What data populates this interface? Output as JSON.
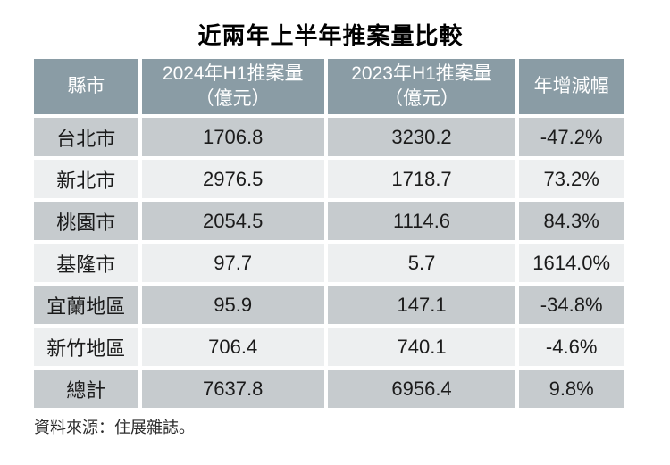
{
  "page": {
    "title": "近兩年上半年推案量比較",
    "source_note": "資料來源：住展雜誌。"
  },
  "colors": {
    "page_bg": "#ffffff",
    "header_bg": "#8a9ca5",
    "header_text": "#ffffff",
    "row_dark_bg": "#c6cbce",
    "row_light_bg": "#edeff0",
    "cell_text": "#1b1b1b",
    "title_text": "#000000",
    "source_text": "#2b2b2b"
  },
  "table": {
    "headers": [
      {
        "line1": "縣市",
        "line2": ""
      },
      {
        "line1": "2024年H1推案量",
        "line2": "（億元）"
      },
      {
        "line1": "2023年H1推案量",
        "line2": "（億元）"
      },
      {
        "line1": "年增減幅",
        "line2": ""
      }
    ],
    "rows": [
      {
        "region": "台北市",
        "y2024": "1706.8",
        "y2023": "3230.2",
        "yoy": "-47.2%"
      },
      {
        "region": "新北市",
        "y2024": "2976.5",
        "y2023": "1718.7",
        "yoy": "73.2%"
      },
      {
        "region": "桃園市",
        "y2024": "2054.5",
        "y2023": "1114.6",
        "yoy": "84.3%"
      },
      {
        "region": "基隆市",
        "y2024": "97.7",
        "y2023": "5.7",
        "yoy": "1614.0%"
      },
      {
        "region": "宜蘭地區",
        "y2024": "95.9",
        "y2023": "147.1",
        "yoy": "-34.8%"
      },
      {
        "region": "新竹地區",
        "y2024": "706.4",
        "y2023": "740.1",
        "yoy": "-4.6%"
      },
      {
        "region": "總計",
        "y2024": "7637.8",
        "y2023": "6956.4",
        "yoy": "9.8%"
      }
    ]
  },
  "chart_data": {
    "type": "table",
    "title": "近兩年上半年推案量比較",
    "columns": [
      "縣市",
      "2024年H1推案量（億元）",
      "2023年H1推案量（億元）",
      "年增減幅"
    ],
    "rows": [
      [
        "台北市",
        1706.8,
        3230.2,
        "-47.2%"
      ],
      [
        "新北市",
        2976.5,
        1718.7,
        "73.2%"
      ],
      [
        "桃園市",
        2054.5,
        1114.6,
        "84.3%"
      ],
      [
        "基隆市",
        97.7,
        5.7,
        "1614.0%"
      ],
      [
        "宜蘭地區",
        95.9,
        147.1,
        "-34.8%"
      ],
      [
        "新竹地區",
        706.4,
        740.1,
        "-4.6%"
      ],
      [
        "總計",
        7637.8,
        6956.4,
        "9.8%"
      ]
    ],
    "units": "億元",
    "source": "住展雜誌"
  }
}
